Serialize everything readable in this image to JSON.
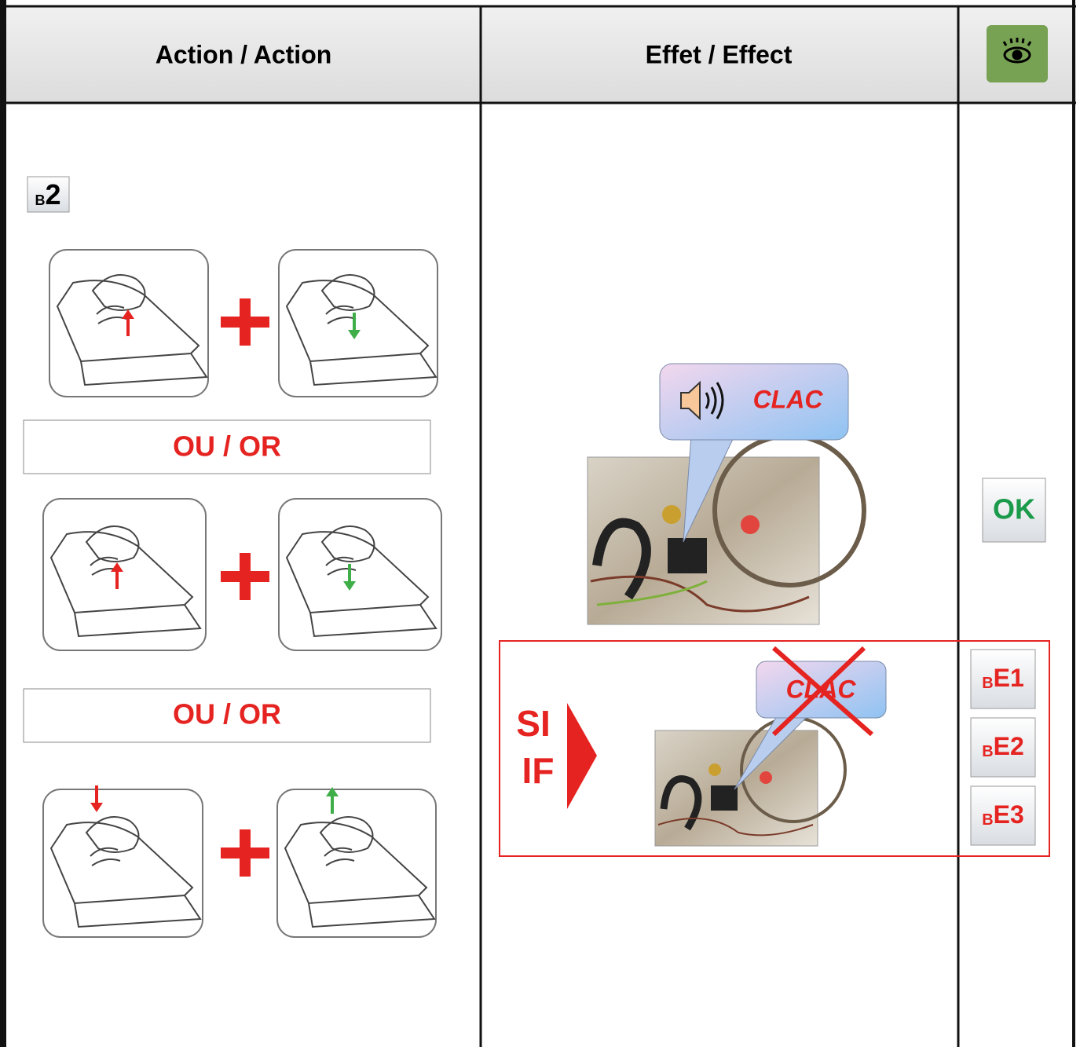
{
  "header": {
    "action": "Action / Action",
    "effect": "Effet / Effect"
  },
  "step": {
    "prefix": "B",
    "number": "2"
  },
  "action": {
    "or_labels": [
      "OU / OR",
      "OU / OR"
    ]
  },
  "effect": {
    "sound": "CLAC",
    "condition": {
      "fr": "SI",
      "en": "IF"
    },
    "failed_sound": "CLAC"
  },
  "result": {
    "ok": "OK",
    "errors": [
      {
        "prefix": "B",
        "code": "E1"
      },
      {
        "prefix": "B",
        "code": "E2"
      },
      {
        "prefix": "B",
        "code": "E3"
      }
    ]
  }
}
